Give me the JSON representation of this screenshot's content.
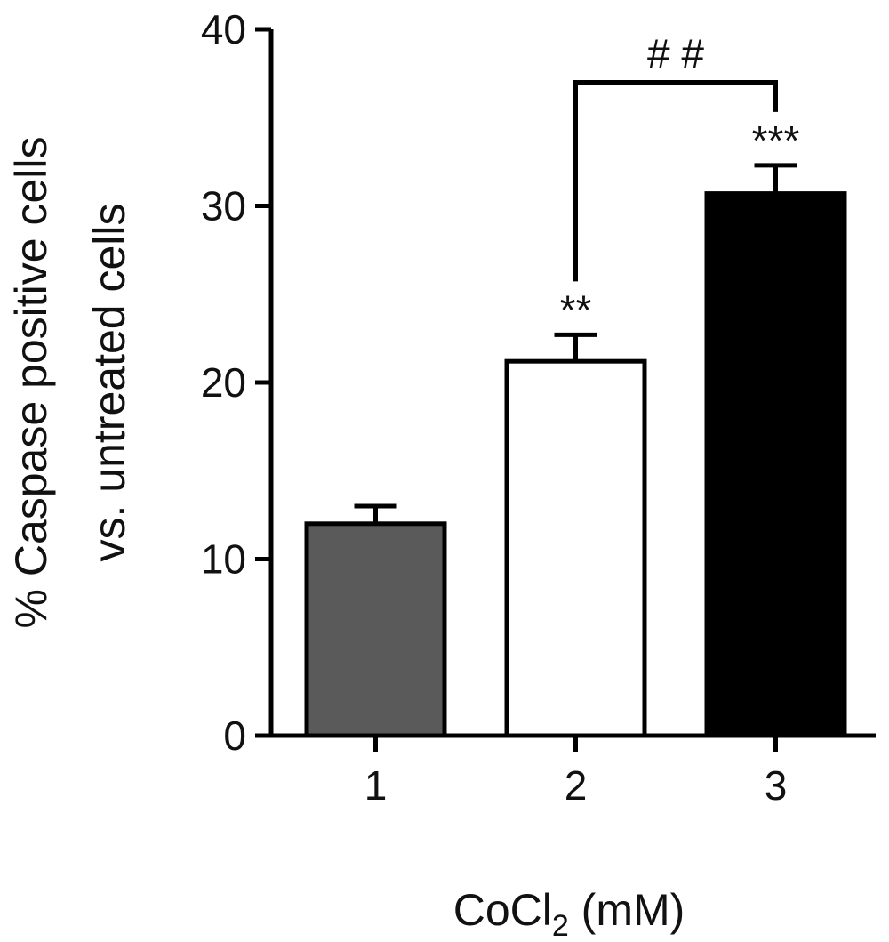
{
  "chart_data": {
    "type": "bar",
    "categories": [
      "1",
      "2",
      "3"
    ],
    "values": [
      12,
      21.2,
      30.7
    ],
    "errors": [
      1.0,
      1.5,
      1.6
    ],
    "bar_colors": [
      "#5a5a5a",
      "#ffffff",
      "#000000"
    ],
    "bar_stroke": "#000000",
    "annotations": [
      "",
      "**",
      "***"
    ],
    "bracket": {
      "from": 1,
      "to": 2,
      "y": 37,
      "label": "# #"
    },
    "xlabel_main": "CoCl",
    "xlabel_sub": "2",
    "xlabel_tail": " (mM)",
    "ylabel_line1": "% Caspase positive cells",
    "ylabel_line2": "vs. untreated cells",
    "ylim": [
      0,
      40
    ],
    "yticks": [
      0,
      10,
      20,
      30,
      40
    ],
    "grid": false
  }
}
